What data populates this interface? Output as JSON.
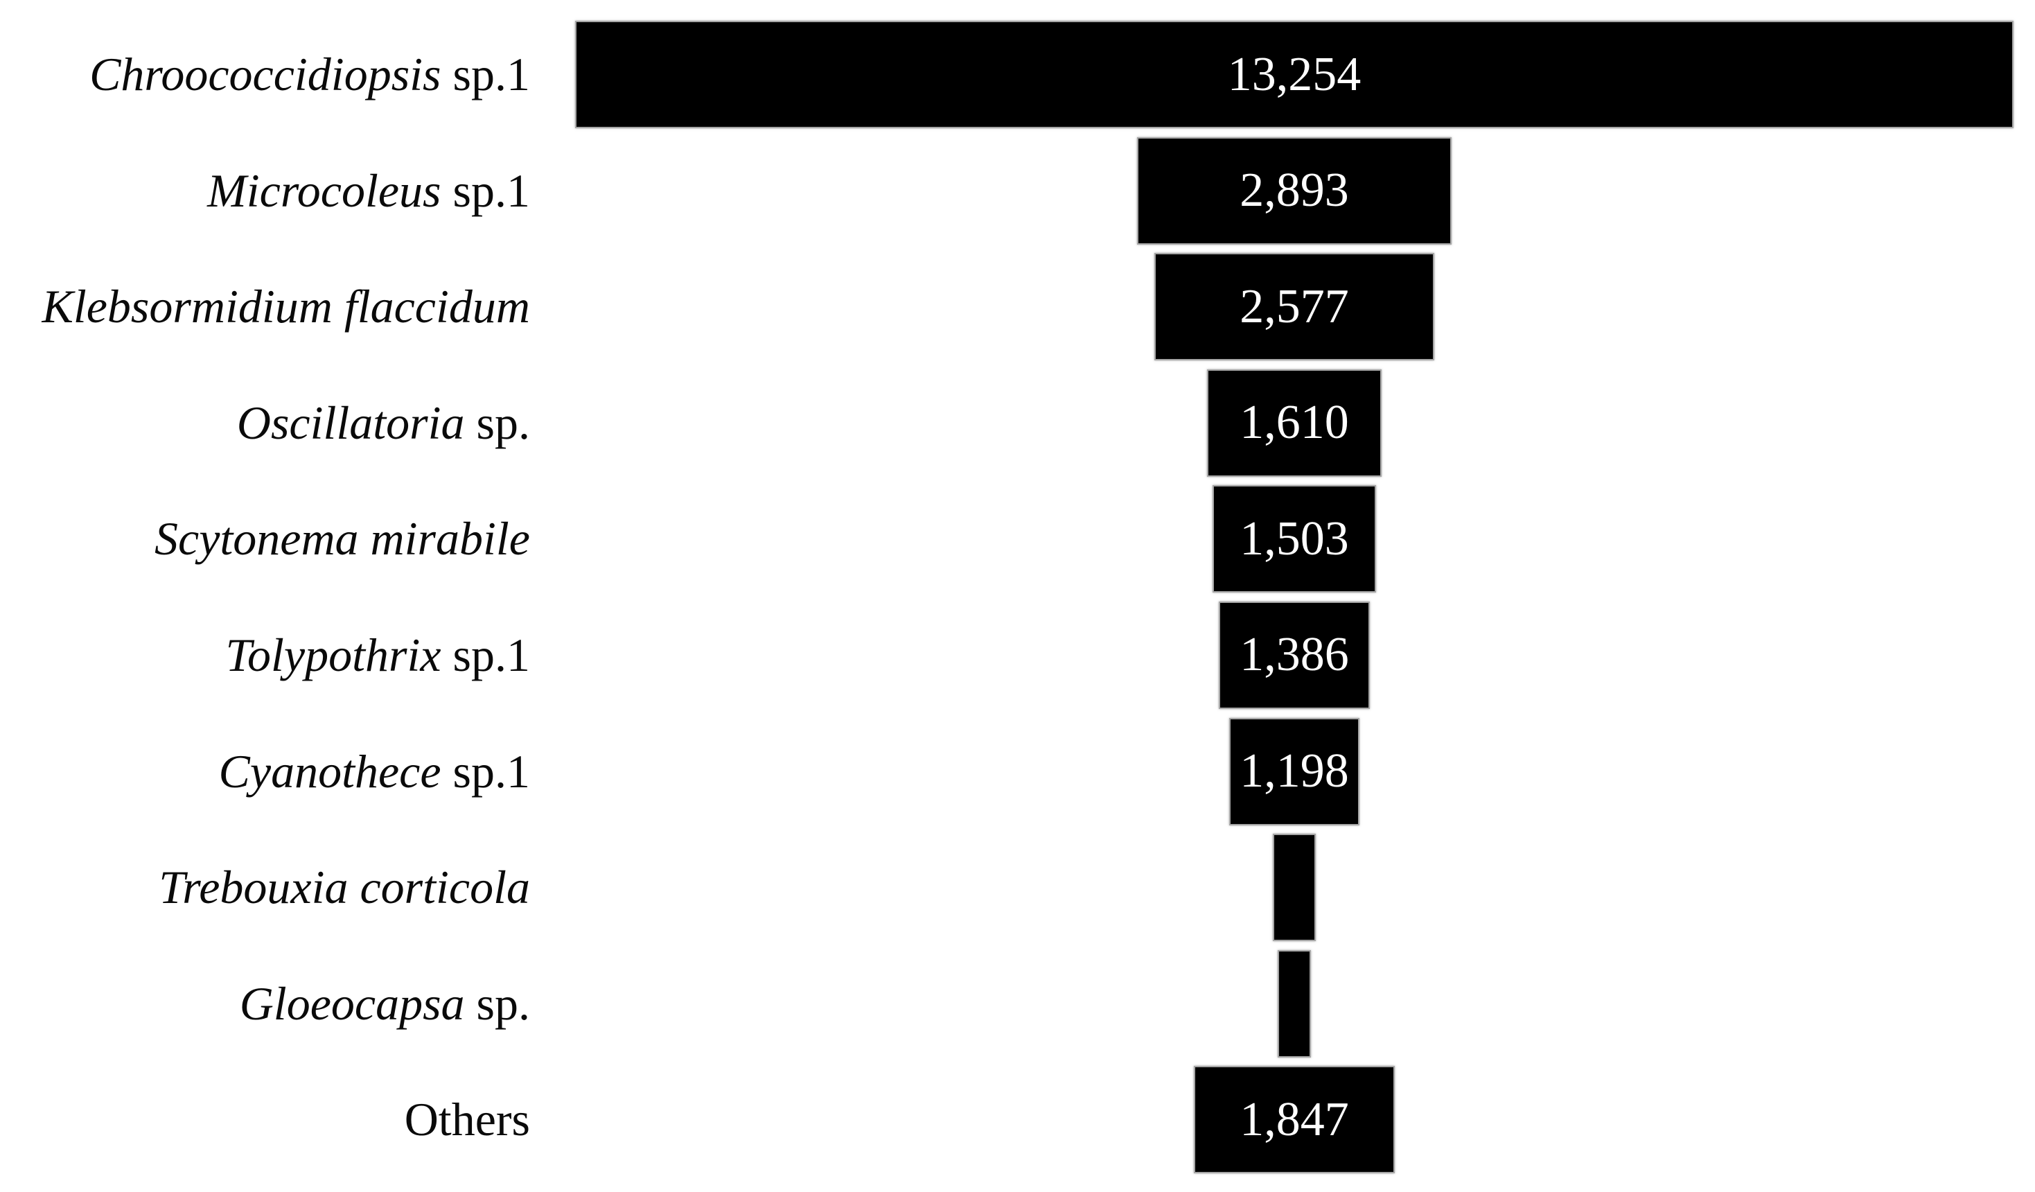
{
  "chart": {
    "rows": [
      {
        "label_italic": "Chroococcidiopsis",
        "label_roman": " sp.1",
        "value_label": "13,254"
      },
      {
        "label_italic": "Microcoleus",
        "label_roman": " sp.1",
        "value_label": "2,893"
      },
      {
        "label_italic": "Klebsormidium flaccidum",
        "label_roman": "",
        "value_label": "2,577"
      },
      {
        "label_italic": "Oscillatoria",
        "label_roman": " sp.",
        "value_label": "1,610"
      },
      {
        "label_italic": "Scytonema mirabile",
        "label_roman": "",
        "value_label": "1,503"
      },
      {
        "label_italic": "Tolypothrix",
        "label_roman": " sp.1",
        "value_label": "1,386"
      },
      {
        "label_italic": "Cyanothece",
        "label_roman": " sp.1",
        "value_label": "1,198"
      },
      {
        "label_italic": "Trebouxia corticola",
        "label_roman": "",
        "value_label": ""
      },
      {
        "label_italic": "Gloeocapsa",
        "label_roman": " sp.",
        "value_label": ""
      },
      {
        "label_italic": "",
        "label_roman": "Others",
        "value_label": "1,847"
      }
    ]
  },
  "chart_data": {
    "type": "bar",
    "orientation": "horizontal",
    "alignment": "bars-centered-funnel-style",
    "title": "",
    "xlabel": "",
    "ylabel": "",
    "grid": false,
    "legend": false,
    "categories": [
      "Chroococcidiopsis sp.1",
      "Microcoleus sp.1",
      "Klebsormidium flaccidum",
      "Oscillatoria sp.",
      "Scytonema mirabile",
      "Tolypothrix sp.1",
      "Cyanothece sp.1",
      "Trebouxia corticola",
      "Gloeocapsa sp.",
      "Others"
    ],
    "values": [
      13254,
      2893,
      2577,
      1610,
      1503,
      1386,
      1198,
      396,
      306,
      1847
    ],
    "value_labels_shown": [
      "13,254",
      "2,893",
      "2,577",
      "1,610",
      "1,503",
      "1,386",
      "1,198",
      "",
      "",
      "1,847"
    ],
    "estimated_value_indices": [
      7,
      8
    ],
    "xlim": [
      0,
      13254
    ],
    "bar_color": "#000000",
    "value_text_color": "#ffffff",
    "label_text_color": "#0a0a0a",
    "background_color": "#ffffff"
  }
}
